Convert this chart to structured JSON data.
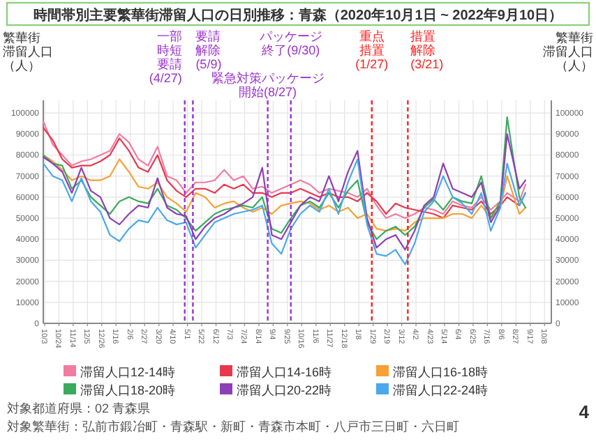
{
  "chart_data": {
    "type": "line",
    "title": "時間帯別主要繁華街滞留人口の日別推移：青森（2020年10月1日 ~ 2022年9月10日）",
    "ylabel": "繁華街滞留人口（人）",
    "y2label": "繁華街滞留人口（人）",
    "x": [
      "2020-10-01",
      "2020-10-15",
      "2020-10-29",
      "2020-11-12",
      "2020-11-26",
      "2020-12-10",
      "2020-12-24",
      "2021-01-07",
      "2021-01-21",
      "2021-02-04",
      "2021-02-18",
      "2021-03-04",
      "2021-03-18",
      "2021-04-01",
      "2021-04-15",
      "2021-04-29",
      "2021-05-13",
      "2021-05-27",
      "2021-06-10",
      "2021-06-24",
      "2021-07-08",
      "2021-07-22",
      "2021-08-05",
      "2021-08-19",
      "2021-09-02",
      "2021-09-16",
      "2021-09-30",
      "2021-10-14",
      "2021-10-28",
      "2021-11-11",
      "2021-11-25",
      "2021-12-09",
      "2021-12-23",
      "2022-01-06",
      "2022-01-20",
      "2022-02-03",
      "2022-02-17",
      "2022-03-03",
      "2022-03-17",
      "2022-03-31",
      "2022-04-14",
      "2022-04-28",
      "2022-05-12",
      "2022-05-26",
      "2022-06-09",
      "2022-06-23",
      "2022-07-07",
      "2022-07-21",
      "2022-08-04",
      "2022-08-14",
      "2022-09-01",
      "2022-09-10"
    ],
    "series": [
      {
        "name": "滞留人口12-14時",
        "color": "#f27ba0",
        "values": [
          96000,
          85000,
          80000,
          75000,
          77000,
          78000,
          80000,
          82000,
          90000,
          86000,
          78000,
          75000,
          84000,
          70000,
          68000,
          62000,
          67000,
          67000,
          68000,
          73000,
          68000,
          70000,
          64000,
          65000,
          62000,
          64000,
          66000,
          68000,
          66000,
          62000,
          64000,
          63000,
          62000,
          60000,
          64000,
          56000,
          50000,
          52000,
          50000,
          52000,
          55000,
          54000,
          52000,
          58000,
          56000,
          55000,
          60000,
          54000,
          58000,
          62000,
          58000,
          66000
        ]
      },
      {
        "name": "滞留人口14-16時",
        "color": "#e8384f",
        "values": [
          93000,
          87000,
          78000,
          74000,
          75000,
          75000,
          77000,
          80000,
          88000,
          82000,
          74000,
          72000,
          80000,
          68000,
          63000,
          60000,
          64000,
          64000,
          62000,
          66000,
          64000,
          66000,
          62000,
          62000,
          60000,
          62000,
          62000,
          64000,
          62000,
          60000,
          62000,
          60000,
          60000,
          58000,
          62000,
          58000,
          52000,
          57000,
          55000,
          54000,
          53000,
          52000,
          50000,
          56000,
          55000,
          54000,
          58000,
          52000,
          56000,
          60000,
          56000,
          62000
        ]
      },
      {
        "name": "滞留人口16-18時",
        "color": "#f7a035",
        "values": [
          80000,
          77000,
          73000,
          68000,
          70000,
          68000,
          68000,
          70000,
          78000,
          72000,
          65000,
          64000,
          67000,
          60000,
          57000,
          53000,
          62000,
          60000,
          55000,
          57000,
          58000,
          55000,
          53000,
          55000,
          52000,
          56000,
          57000,
          58000,
          57000,
          54000,
          56000,
          53000,
          55000,
          50000,
          52000,
          45000,
          44000,
          45000,
          44000,
          48000,
          50000,
          50000,
          50000,
          52000,
          52000,
          50000,
          56000,
          50000,
          55000,
          70000,
          52000,
          55000
        ]
      },
      {
        "name": "滞留人口18-20時",
        "color": "#3aaa5c",
        "values": [
          80000,
          76000,
          75000,
          64000,
          68000,
          60000,
          56000,
          52000,
          58000,
          60000,
          58000,
          57000,
          64000,
          56000,
          54000,
          50000,
          44000,
          48000,
          52000,
          54000,
          55000,
          56000,
          55000,
          60000,
          45000,
          43000,
          50000,
          56000,
          58000,
          55000,
          62000,
          55000,
          63000,
          68000,
          48000,
          40000,
          44000,
          46000,
          42000,
          46000,
          55000,
          59000,
          54000,
          60000,
          58000,
          57000,
          70000,
          50000,
          58000,
          98000,
          60000,
          55000
        ]
      },
      {
        "name": "滞留人口20-22時",
        "color": "#8e3fb5",
        "values": [
          79000,
          76000,
          72000,
          62000,
          74000,
          63000,
          60000,
          50000,
          47000,
          52000,
          56000,
          55000,
          69000,
          55000,
          52000,
          51000,
          40000,
          46000,
          50000,
          52000,
          55000,
          57000,
          60000,
          74000,
          42000,
          40000,
          48000,
          56000,
          60000,
          58000,
          70000,
          58000,
          72000,
          82000,
          50000,
          36000,
          40000,
          42000,
          35000,
          44000,
          56000,
          60000,
          76000,
          64000,
          62000,
          60000,
          67000,
          48000,
          56000,
          90000,
          64000,
          68000
        ]
      },
      {
        "name": "滞留人口22-24時",
        "color": "#4aa8ec",
        "values": [
          76000,
          70000,
          68000,
          58000,
          69000,
          58000,
          53000,
          42000,
          39000,
          45000,
          49000,
          48000,
          55000,
          49000,
          47000,
          48000,
          36000,
          42000,
          48000,
          50000,
          52000,
          53000,
          54000,
          56000,
          38000,
          33000,
          45000,
          52000,
          56000,
          53000,
          64000,
          52000,
          67000,
          78000,
          47000,
          33000,
          32000,
          35000,
          28000,
          38000,
          53000,
          58000,
          70000,
          60000,
          57000,
          52000,
          62000,
          44000,
          55000,
          76000,
          56000,
          62000
        ]
      }
    ],
    "xlim": [
      "2020-10-01",
      "2022-10-18"
    ],
    "xticks": [
      {
        "value": "2020-10-03",
        "label": "10/3"
      },
      {
        "value": "2020-10-24",
        "label": "10/24"
      },
      {
        "value": "2020-11-14",
        "label": "11/14"
      },
      {
        "value": "2020-12-05",
        "label": "12/5"
      },
      {
        "value": "2020-12-26",
        "label": "12/26"
      },
      {
        "value": "2021-01-16",
        "label": "1/16"
      },
      {
        "value": "2021-02-06",
        "label": "2/6"
      },
      {
        "value": "2021-02-27",
        "label": "2/27"
      },
      {
        "value": "2021-03-20",
        "label": "3/20"
      },
      {
        "value": "2021-04-10",
        "label": "4/10"
      },
      {
        "value": "2021-05-01",
        "label": "5/1"
      },
      {
        "value": "2021-05-22",
        "label": "5/22"
      },
      {
        "value": "2021-06-12",
        "label": "6/12"
      },
      {
        "value": "2021-07-03",
        "label": "7/3"
      },
      {
        "value": "2021-07-24",
        "label": "7/24"
      },
      {
        "value": "2021-08-14",
        "label": "8/14"
      },
      {
        "value": "2021-09-04",
        "label": "9/4"
      },
      {
        "value": "2021-09-25",
        "label": "9/25"
      },
      {
        "value": "2021-10-16",
        "label": "10/16"
      },
      {
        "value": "2021-11-06",
        "label": "11/6"
      },
      {
        "value": "2021-11-27",
        "label": "11/27"
      },
      {
        "value": "2021-12-18",
        "label": "12/18"
      },
      {
        "value": "2022-01-08",
        "label": "1/8"
      },
      {
        "value": "2022-01-29",
        "label": "1/29"
      },
      {
        "value": "2022-02-19",
        "label": "2/19"
      },
      {
        "value": "2022-03-12",
        "label": "3/12"
      },
      {
        "value": "2022-04-02",
        "label": "4/2"
      },
      {
        "value": "2022-04-23",
        "label": "4/23"
      },
      {
        "value": "2022-05-14",
        "label": "5/14"
      },
      {
        "value": "2022-06-04",
        "label": "6/4"
      },
      {
        "value": "2022-06-25",
        "label": "6/25"
      },
      {
        "value": "2022-07-16",
        "label": "7/16"
      },
      {
        "value": "2022-08-06",
        "label": "8/6"
      },
      {
        "value": "2022-08-27",
        "label": "8/27"
      },
      {
        "value": "2022-09-17",
        "label": "9/17"
      },
      {
        "value": "2022-10-08",
        "label": "10/8"
      }
    ],
    "ylim": [
      0,
      106000
    ],
    "yticks": [
      0,
      10000,
      20000,
      30000,
      40000,
      50000,
      60000,
      70000,
      80000,
      90000,
      100000
    ],
    "y2lim": [
      0,
      106000
    ],
    "y2ticks": [
      0,
      10000,
      20000,
      30000,
      40000,
      50000,
      60000,
      70000,
      80000,
      90000,
      100000
    ],
    "ref_lines": [
      {
        "axis": "x",
        "value": "2021-04-27",
        "label": "一部時短要請(4/27)",
        "color": "#9b30d0",
        "line_style": "dashed"
      },
      {
        "axis": "x",
        "value": "2021-05-09",
        "label": "要請解除(5/9)",
        "color": "#9b30d0",
        "line_style": "dashed"
      },
      {
        "axis": "x",
        "value": "2021-08-27",
        "label": "緊急対策パッケージ開始(8/27)",
        "color": "#9b30d0",
        "line_style": "dashed"
      },
      {
        "axis": "x",
        "value": "2021-09-30",
        "label": "パッケージ終了(9/30)",
        "color": "#9b30d0",
        "line_style": "dashed"
      },
      {
        "axis": "x",
        "value": "2022-01-27",
        "label": "重点措置(1/27)",
        "color": "#ff2020",
        "line_style": "dashed"
      },
      {
        "axis": "x",
        "value": "2022-03-21",
        "label": "措置解除(3/21)",
        "color": "#ff2020",
        "line_style": "dashed"
      }
    ],
    "grid": true,
    "legend": "bottom",
    "annotations": [
      "対象都道府県：02 青森県",
      "対象繁華街：弘前市鍛冶町・青森駅・新町・青森市本町・八戸市三日町・六日町",
      "4"
    ]
  }
}
